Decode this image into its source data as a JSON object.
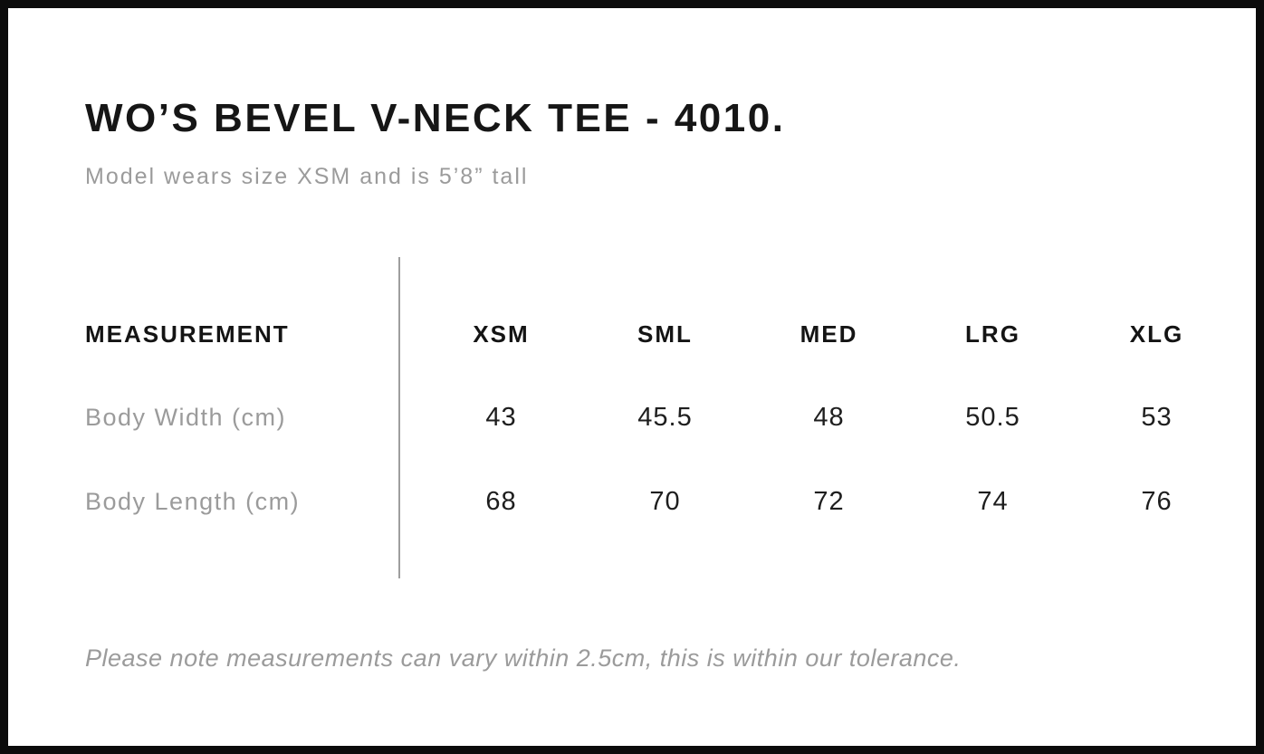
{
  "page": {
    "title": "WO’S BEVEL V-NECK TEE - 4010.",
    "subtitle": "Model wears size XSM and is 5’8” tall",
    "footnote": "Please note measurements can vary within 2.5cm, this is within our tolerance."
  },
  "size_chart": {
    "type": "table",
    "header": {
      "measurement_label": "MEASUREMENT",
      "sizes": [
        "XSM",
        "SML",
        "MED",
        "LRG",
        "XLG"
      ]
    },
    "rows": [
      {
        "label": "Body Width (cm)",
        "values": [
          "43",
          "45.5",
          "48",
          "50.5",
          "53"
        ]
      },
      {
        "label": "Body Length (cm)",
        "values": [
          "68",
          "70",
          "72",
          "74",
          "76"
        ]
      }
    ]
  },
  "colors": {
    "background": "#ffffff",
    "frame_border": "#0c0c0c",
    "text_primary": "#161616",
    "text_secondary": "#9b9b9b",
    "divider": "#9e9e9e"
  }
}
